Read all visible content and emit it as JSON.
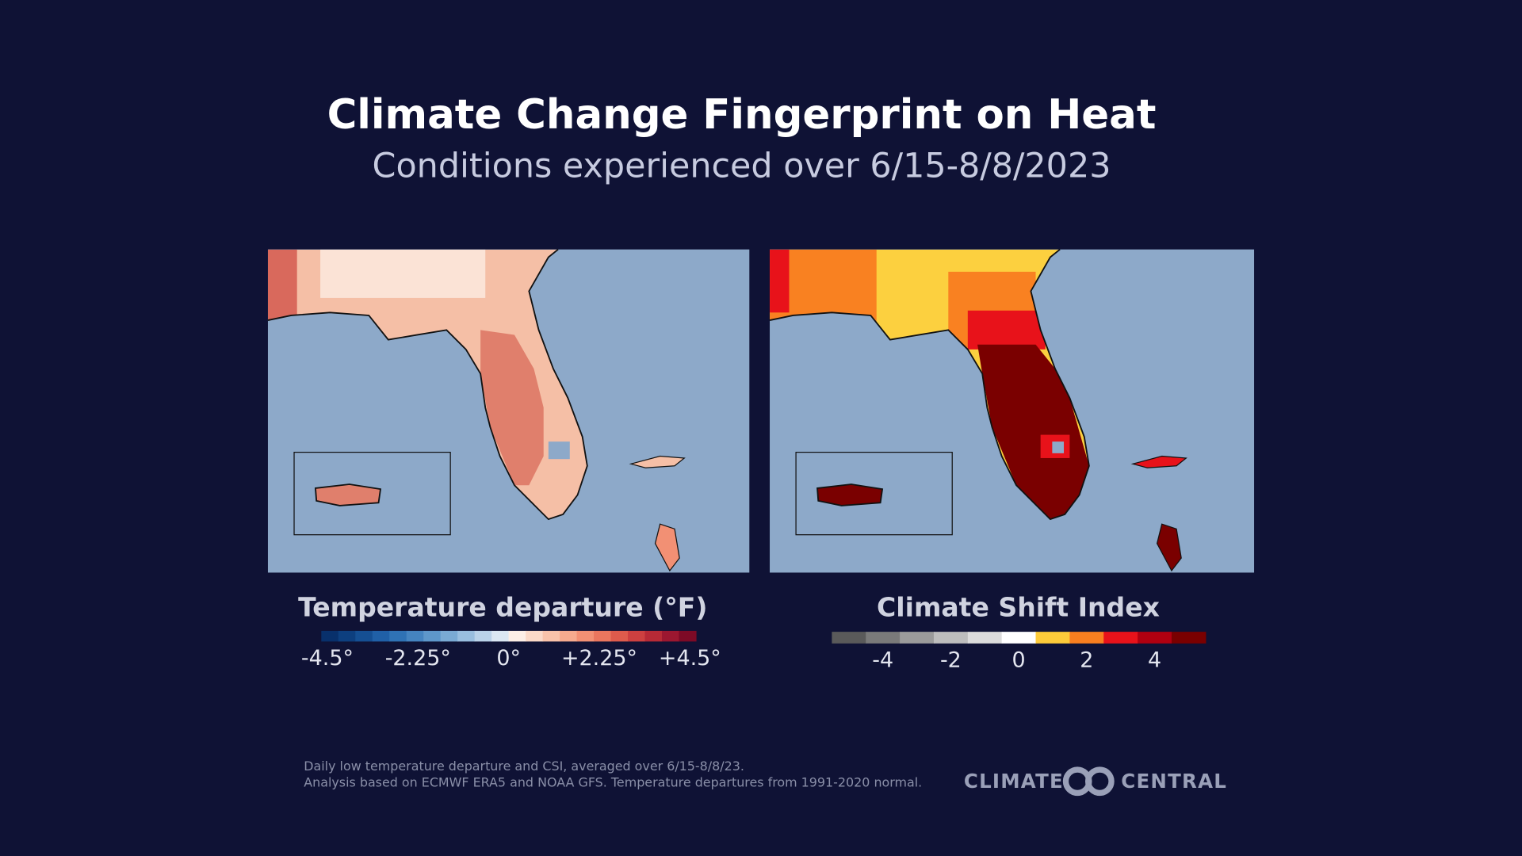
{
  "header": {
    "title": "Climate Change Fingerprint on Heat",
    "subtitle": "Conditions experienced over 6/15-8/8/2023"
  },
  "maps": [
    {
      "legend": {
        "title": "Temperature departure (°F)",
        "range": [
          -4.65,
          4.65
        ],
        "colors": [
          "#08306b",
          "#0d3f7f",
          "#154f93",
          "#2060a7",
          "#2f72b5",
          "#4584c0",
          "#5e97ca",
          "#7aaad4",
          "#99bedf",
          "#bad2e9",
          "#dbe7f3",
          "#fdeee6",
          "#fbd9c8",
          "#f9c2aa",
          "#f6aa8e",
          "#f29074",
          "#ea765e",
          "#de5b4c",
          "#cd4040",
          "#b72a36",
          "#9c1730",
          "#7d0a26"
        ],
        "ticks": [
          {
            "value": -4.5,
            "label": "-4.5°"
          },
          {
            "value": -2.25,
            "label": "-2.25°"
          },
          {
            "value": 0,
            "label": "0°"
          },
          {
            "value": 2.25,
            "label": "+2.25°"
          },
          {
            "value": 4.5,
            "label": "+4.5°"
          }
        ]
      }
    },
    {
      "legend": {
        "title": "Climate Shift Index",
        "range": [
          -5.5,
          5.5
        ],
        "colors": [
          "#5a5a5a",
          "#7a7a7a",
          "#9b9b9b",
          "#bdbdbd",
          "#dcdcdc",
          "#ffffff",
          "#fdcb3a",
          "#f97f1f",
          "#e8121a",
          "#b00010",
          "#7a0000"
        ],
        "ticks": [
          -4,
          -2,
          0,
          2,
          4
        ]
      }
    }
  ],
  "footnote": [
    "Daily low temperature departure and CSI, averaged over 6/15-8/8/23.",
    "Analysis based on ECMWF ERA5 and NOAA GFS. Temperature departures from 1991-2020 normal."
  ],
  "logo": {
    "left": "CLIMATE",
    "right": "CENTRAL"
  }
}
